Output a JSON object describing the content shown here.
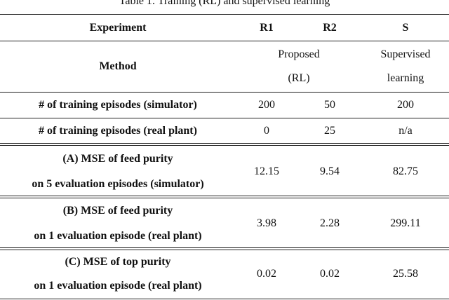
{
  "caption": "Table 1. Training (RL) and supervised learning",
  "header": {
    "experiment": "Experiment",
    "r1": "R1",
    "r2": "R2",
    "s": "S"
  },
  "method": {
    "label": "Method",
    "proposed_line1": "Proposed",
    "proposed_line2": "(RL)",
    "supervised_line1": "Supervised",
    "supervised_line2": "learning"
  },
  "rows": [
    {
      "label": "# of training episodes (simulator)",
      "r1": "200",
      "r2": "50",
      "s": "200"
    },
    {
      "label": "# of training episodes (real plant)",
      "r1": "0",
      "r2": "25",
      "s": "n/a"
    }
  ],
  "metrics": [
    {
      "line1": "(A) MSE of feed purity",
      "line2": "on 5 evaluation episodes (simulator)",
      "r1": "12.15",
      "r2": "9.54",
      "s": "82.75"
    },
    {
      "line1": "(B) MSE of feed purity",
      "line2": "on 1 evaluation episode (real plant)",
      "r1": "3.98",
      "r2": "2.28",
      "s": "299.11"
    },
    {
      "line1": "(C) MSE of top purity",
      "line2": "on 1 evaluation episode (real plant)",
      "r1": "0.02",
      "r2": "0.02",
      "s": "25.58"
    }
  ]
}
